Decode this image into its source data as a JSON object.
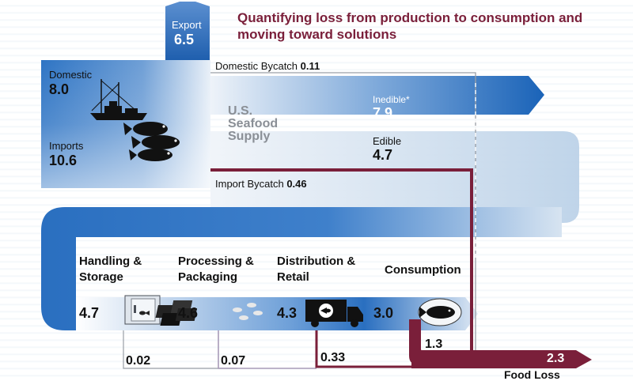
{
  "title": "Quantifying loss from production to consumption and moving toward solutions",
  "export": {
    "label": "Export",
    "value": "6.5"
  },
  "domestic": {
    "label": "Domestic",
    "value": "8.0"
  },
  "imports": {
    "label": "Imports",
    "value": "10.6"
  },
  "supply": {
    "line1": "U.S.",
    "line2": "Seafood",
    "line3": "Supply"
  },
  "domestic_bycatch": {
    "label": "Domestic Bycatch",
    "value": "0.11"
  },
  "import_bycatch": {
    "label": "Import Bycatch",
    "value": "0.46"
  },
  "inedible": {
    "label": "Inedible*",
    "value": "7.9"
  },
  "edible": {
    "label": "Edible",
    "value": "4.7"
  },
  "stages": [
    {
      "line1": "Handling &",
      "line2": "Storage",
      "value": "4.7",
      "loss": "0.02"
    },
    {
      "line1": "Processing &",
      "line2": "Packaging",
      "value": "4.6",
      "loss": "0.07"
    },
    {
      "line1": "Distribution &",
      "line2": "Retail",
      "value": "4.3",
      "loss": "0.33"
    },
    {
      "line1": "Consumption",
      "line2": "",
      "value": "3.0",
      "loss": "1.3"
    }
  ],
  "food_loss": {
    "label": "Food Loss",
    "value": "2.3"
  },
  "icons": [
    "fishing-boat-icon",
    "fish-icon",
    "refrigerator-icon",
    "packaged-fish-icon",
    "delivery-truck-icon",
    "fish-plate-icon"
  ],
  "colors": {
    "flow_blue": "#1f66b8",
    "light_blue": "#c9d9ea",
    "loss_red": "#7a1f3a",
    "title": "#7a1f3a"
  }
}
